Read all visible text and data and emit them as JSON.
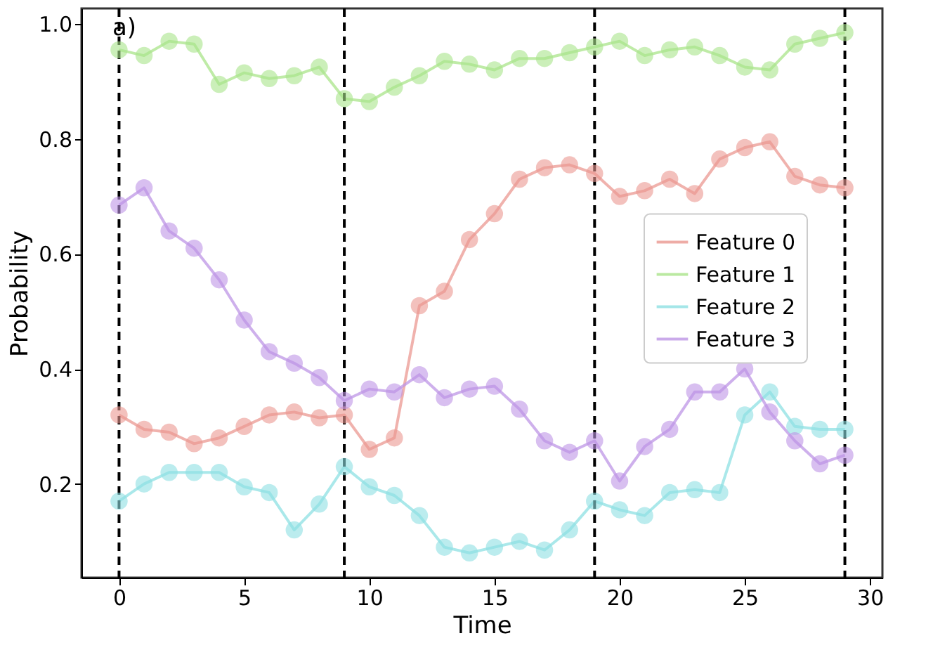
{
  "chart_data": {
    "type": "line",
    "xlabel": "Time",
    "ylabel": "Probability",
    "x": [
      0,
      1,
      2,
      3,
      4,
      5,
      6,
      7,
      8,
      9,
      10,
      11,
      12,
      13,
      14,
      15,
      16,
      17,
      18,
      19,
      20,
      21,
      22,
      23,
      24,
      25,
      26,
      27,
      28,
      29
    ],
    "series": [
      {
        "name": "Feature 0",
        "color": "#eb9891",
        "values": [
          0.32,
          0.295,
          0.29,
          0.27,
          0.28,
          0.3,
          0.32,
          0.325,
          0.315,
          0.32,
          0.26,
          0.28,
          0.51,
          0.535,
          0.625,
          0.67,
          0.73,
          0.75,
          0.755,
          0.74,
          0.7,
          0.71,
          0.73,
          0.705,
          0.765,
          0.785,
          0.795,
          0.735,
          0.72,
          0.715
        ]
      },
      {
        "name": "Feature 1",
        "color": "#a9e48a",
        "values": [
          0.955,
          0.945,
          0.97,
          0.965,
          0.895,
          0.915,
          0.905,
          0.91,
          0.925,
          0.87,
          0.865,
          0.89,
          0.91,
          0.935,
          0.93,
          0.92,
          0.94,
          0.94,
          0.95,
          0.96,
          0.97,
          0.945,
          0.955,
          0.96,
          0.945,
          0.925,
          0.92,
          0.965,
          0.975,
          0.985
        ]
      },
      {
        "name": "Feature 2",
        "color": "#8ee0e3",
        "values": [
          0.17,
          0.2,
          0.22,
          0.22,
          0.22,
          0.195,
          0.185,
          0.12,
          0.165,
          0.23,
          0.195,
          0.18,
          0.145,
          0.09,
          0.08,
          0.09,
          0.1,
          0.085,
          0.12,
          0.17,
          0.155,
          0.145,
          0.185,
          0.19,
          0.185,
          0.32,
          0.36,
          0.3,
          0.295,
          0.295
        ]
      },
      {
        "name": "Feature 3",
        "color": "#be95e6",
        "values": [
          0.685,
          0.715,
          0.64,
          0.61,
          0.555,
          0.485,
          0.43,
          0.41,
          0.385,
          0.345,
          0.365,
          0.36,
          0.39,
          0.35,
          0.365,
          0.37,
          0.33,
          0.275,
          0.255,
          0.275,
          0.205,
          0.265,
          0.295,
          0.36,
          0.36,
          0.4,
          0.325,
          0.275,
          0.235,
          0.25
        ]
      }
    ],
    "xlim": [
      -1.5,
      30.5
    ],
    "ylim": [
      0.037,
      1.027
    ],
    "xticks": [
      0,
      5,
      10,
      15,
      20,
      25,
      30
    ],
    "yticks": [
      0.2,
      0.4,
      0.6,
      0.8,
      {
        "value": 1.0,
        "label": "1.0"
      }
    ],
    "ref_lines": [
      {
        "axis": "x",
        "value": 0,
        "color": "#000000",
        "line_style": "dashed"
      },
      {
        "axis": "x",
        "value": 9,
        "color": "#000000",
        "line_style": "dashed"
      },
      {
        "axis": "x",
        "value": 19,
        "color": "#000000",
        "line_style": "dashed"
      },
      {
        "axis": "x",
        "value": 29,
        "color": "#000000",
        "line_style": "dashed"
      }
    ],
    "annotations": [
      "a)"
    ],
    "grid": false,
    "legend": "right",
    "marker": "circle",
    "line_style": "solid"
  }
}
